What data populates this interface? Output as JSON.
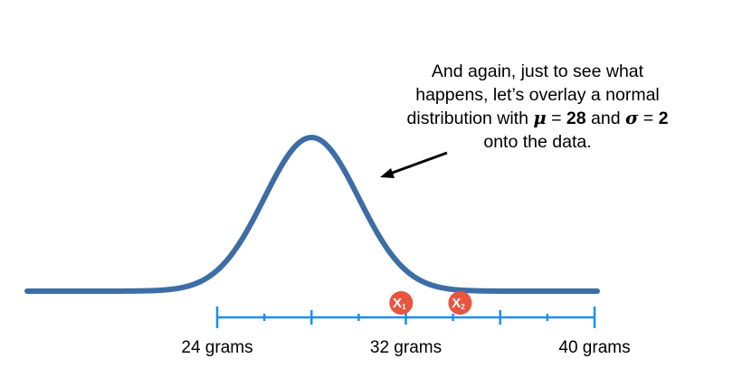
{
  "caption": {
    "line1": "And again, just to see what",
    "line2": "happens, let’s overlay a normal",
    "line3_prefix": "distribution with ",
    "mu_symbol": "μ",
    "mu_equals": " = ",
    "mu_value": "28",
    "and_word": " and ",
    "sigma_symbol": "σ",
    "sigma_equals": " = ",
    "sigma_value": "2",
    "line4": "onto the data."
  },
  "distribution": {
    "mean": 28,
    "sd": 2,
    "color": "#3c6ea5"
  },
  "axis": {
    "min": 24,
    "max": 40,
    "tick_values": [
      24,
      26,
      28,
      30,
      32,
      34,
      36,
      38,
      40
    ],
    "tick_labels": [
      {
        "value": 24,
        "text": "24 grams"
      },
      {
        "value": 32,
        "text": "32 grams"
      },
      {
        "value": 40,
        "text": "40 grams"
      }
    ],
    "color": "#1a8ff0"
  },
  "markers": [
    {
      "label": "X",
      "sub": "1",
      "value": 31.8
    },
    {
      "label": "X",
      "sub": "2",
      "value": 34.3
    }
  ],
  "marker_color": "#e8553f",
  "arrow_color": "#000000"
}
